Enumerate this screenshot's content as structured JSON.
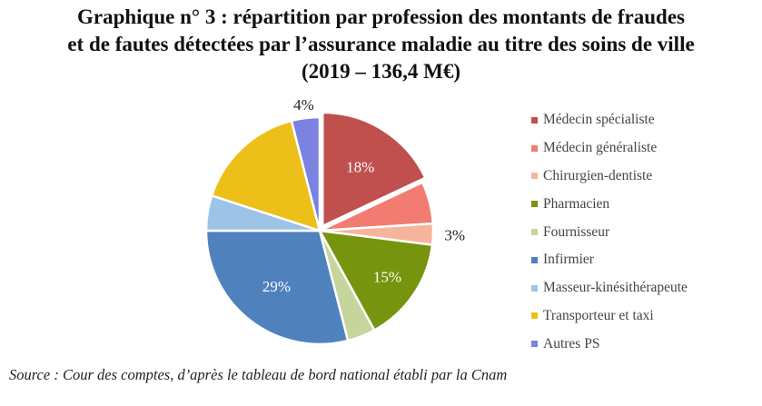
{
  "title": {
    "line1": "Graphique n° 3 : répartition par profession des montants de fraudes",
    "line2": "et de fautes détectées par l’assurance maladie au titre des soins de ville",
    "line3": "(2019 – 136,4 M€)"
  },
  "chart_data": {
    "type": "pie",
    "slices": [
      {
        "name": "Médecin spécialiste",
        "value": 18,
        "label": "18%",
        "color": "#c0504d"
      },
      {
        "name": "Médecin généraliste",
        "value": 6,
        "label": "",
        "color": "#f27b72"
      },
      {
        "name": "Chirurgien-dentiste",
        "value": 3,
        "label": "3%",
        "color": "#f6b59a"
      },
      {
        "name": "Pharmacien",
        "value": 15,
        "label": "15%",
        "color": "#77940f"
      },
      {
        "name": "Fournisseur",
        "value": 4,
        "label": "",
        "color": "#c5d59b"
      },
      {
        "name": "Infirmier",
        "value": 29,
        "label": "29%",
        "color": "#4f81bd"
      },
      {
        "name": "Masseur-kinésithérapeute",
        "value": 5,
        "label": "",
        "color": "#9dc3e6"
      },
      {
        "name": "Transporteur et taxi",
        "value": 16,
        "label": "",
        "color": "#ecc018"
      },
      {
        "name": "Autres PS",
        "value": 4,
        "label": "4%",
        "color": "#7b82e0"
      }
    ]
  },
  "source": "Source : Cour des comptes, d’après le tableau de bord national établi par la Cnam"
}
